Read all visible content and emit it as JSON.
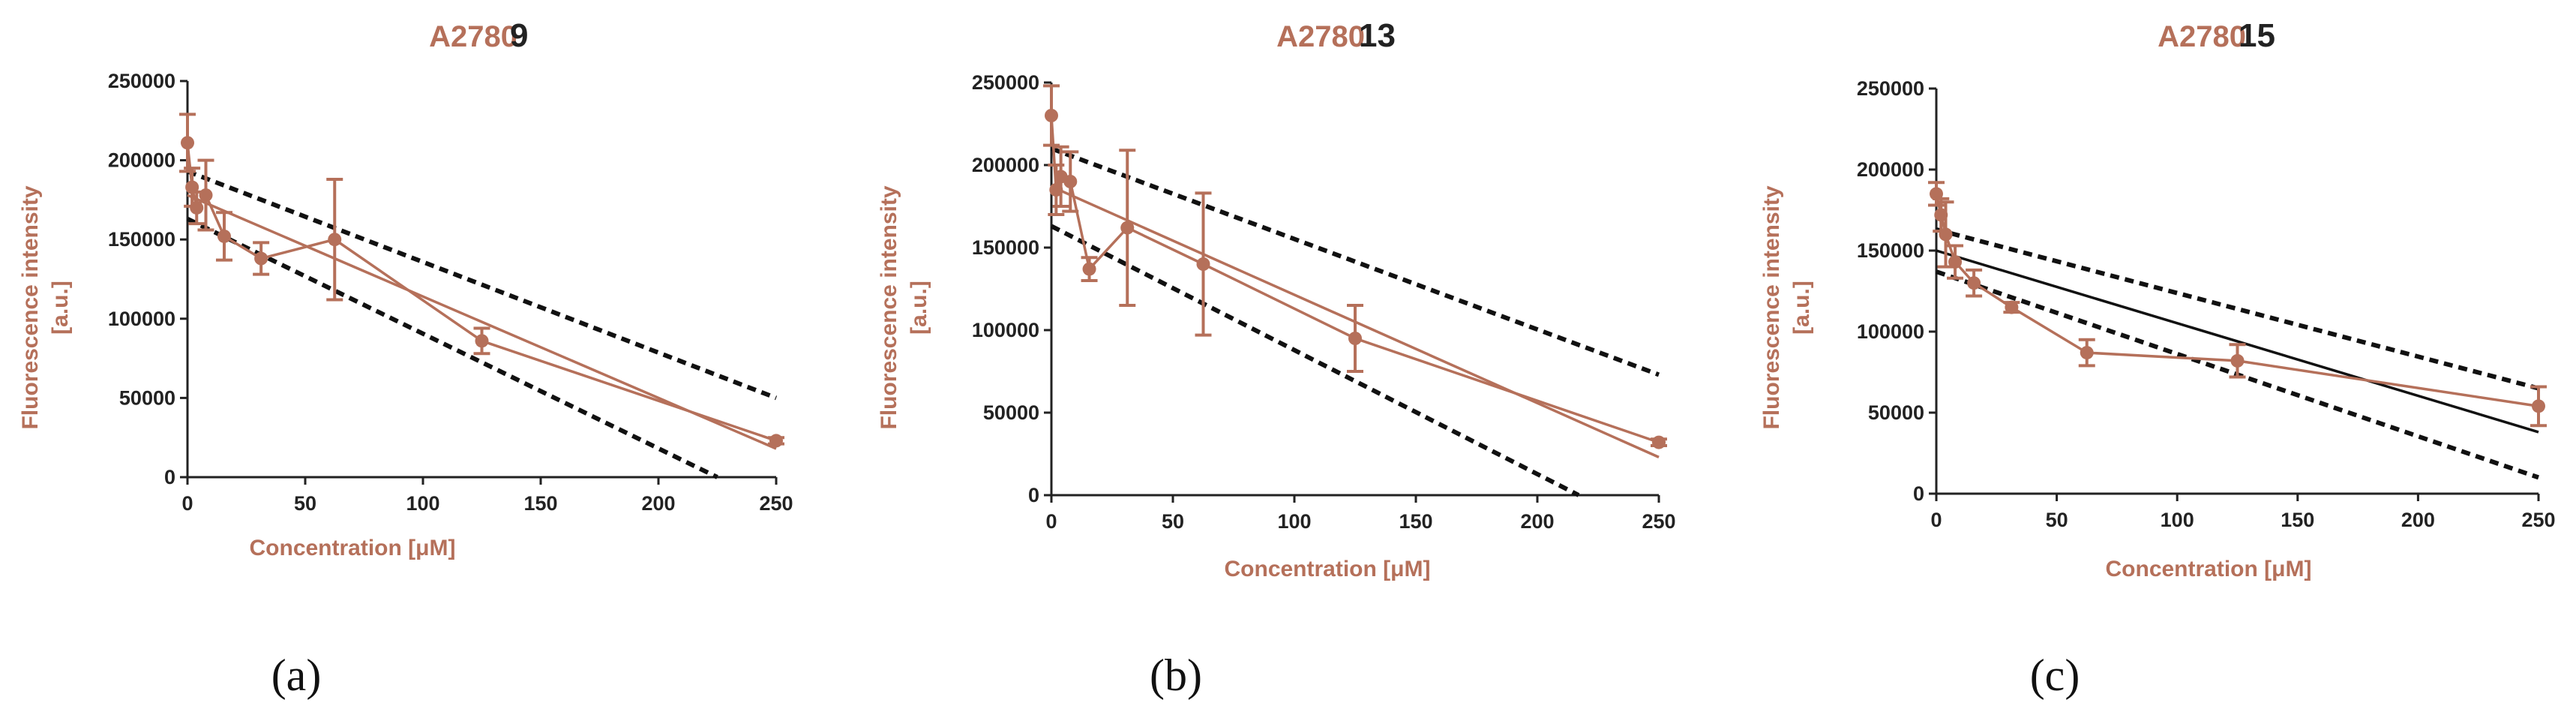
{
  "chart_data": [
    {
      "type": "line",
      "panel_label": "(a)",
      "title_cell": "A2780",
      "title_compound": "9",
      "xlabel": "Concentration [μM]",
      "ylabel_line1": "Fluorescence intensity",
      "ylabel_line2": "[a.u.]",
      "xlim": [
        0,
        250
      ],
      "ylim": [
        0,
        250000
      ],
      "xticks": [
        0,
        50,
        100,
        150,
        200,
        250
      ],
      "yticks": [
        0,
        50000,
        100000,
        150000,
        200000,
        250000
      ],
      "series": {
        "name": "data",
        "color": "#b5705a",
        "x": [
          0,
          1.95,
          3.9,
          7.8,
          15.6,
          31.25,
          62.5,
          125,
          250
        ],
        "y": [
          211000,
          183000,
          170000,
          178000,
          152000,
          138000,
          150000,
          86000,
          23000
        ],
        "err": [
          18000,
          12000,
          10000,
          22000,
          15000,
          10000,
          38000,
          8000,
          2000
        ]
      },
      "fit": {
        "color": "#b5705a",
        "x": [
          0,
          250
        ],
        "y": [
          178000,
          18000
        ]
      },
      "confidence_band": {
        "color": "#111111",
        "upper": {
          "x": [
            0,
            250
          ],
          "y": [
            193000,
            50000
          ]
        },
        "lower": {
          "x": [
            0,
            225
          ],
          "y": [
            163000,
            0
          ]
        }
      }
    },
    {
      "type": "line",
      "panel_label": "(b)",
      "title_cell": "A2780",
      "title_compound": "13",
      "xlabel": "Concentration [μM]",
      "ylabel_line1": "Fluorescence intensity",
      "ylabel_line2": "[a.u.]",
      "xlim": [
        0,
        250
      ],
      "ylim": [
        0,
        250000
      ],
      "xticks": [
        0,
        50,
        100,
        150,
        200,
        250
      ],
      "yticks": [
        0,
        50000,
        100000,
        150000,
        200000,
        250000
      ],
      "series": {
        "name": "data",
        "color": "#b5705a",
        "x": [
          0,
          1.95,
          3.9,
          7.8,
          15.6,
          31.25,
          62.5,
          125,
          250
        ],
        "y": [
          230000,
          185000,
          193000,
          190000,
          137000,
          162000,
          140000,
          95000,
          32000
        ],
        "err": [
          18000,
          15000,
          18000,
          18000,
          7000,
          47000,
          43000,
          20000,
          2000
        ]
      },
      "fit": {
        "color": "#b5705a",
        "x": [
          0,
          250
        ],
        "y": [
          187000,
          23000
        ]
      },
      "confidence_band": {
        "color": "#111111",
        "upper": {
          "x": [
            0,
            250
          ],
          "y": [
            210000,
            73000
          ]
        },
        "lower": {
          "x": [
            0,
            217
          ],
          "y": [
            163000,
            0
          ]
        }
      }
    },
    {
      "type": "line",
      "panel_label": "(c)",
      "title_cell": "A2780",
      "title_compound": "15",
      "xlabel": "Concentration [μM]",
      "ylabel_line1": "Fluorescence intensity",
      "ylabel_line2": "[a.u.]",
      "xlim": [
        0,
        250
      ],
      "ylim": [
        0,
        250000
      ],
      "xticks": [
        0,
        50,
        100,
        150,
        200,
        250
      ],
      "yticks": [
        0,
        50000,
        100000,
        150000,
        200000,
        250000
      ],
      "series": {
        "name": "data",
        "color": "#b5705a",
        "x": [
          0,
          1.95,
          3.9,
          7.8,
          15.6,
          31.25,
          62.5,
          125,
          250
        ],
        "y": [
          185000,
          172000,
          160000,
          143000,
          130000,
          115000,
          87000,
          82000,
          54000
        ],
        "err": [
          7000,
          10000,
          20000,
          10000,
          8000,
          3000,
          8000,
          10000,
          12000
        ]
      },
      "fit": {
        "color": "#111111",
        "x": [
          0,
          250
        ],
        "y": [
          150000,
          38000
        ]
      },
      "confidence_band": {
        "color": "#111111",
        "upper": {
          "x": [
            0,
            250
          ],
          "y": [
            163000,
            65000
          ]
        },
        "lower": {
          "x": [
            0,
            250
          ],
          "y": [
            137000,
            10000
          ]
        }
      }
    }
  ]
}
